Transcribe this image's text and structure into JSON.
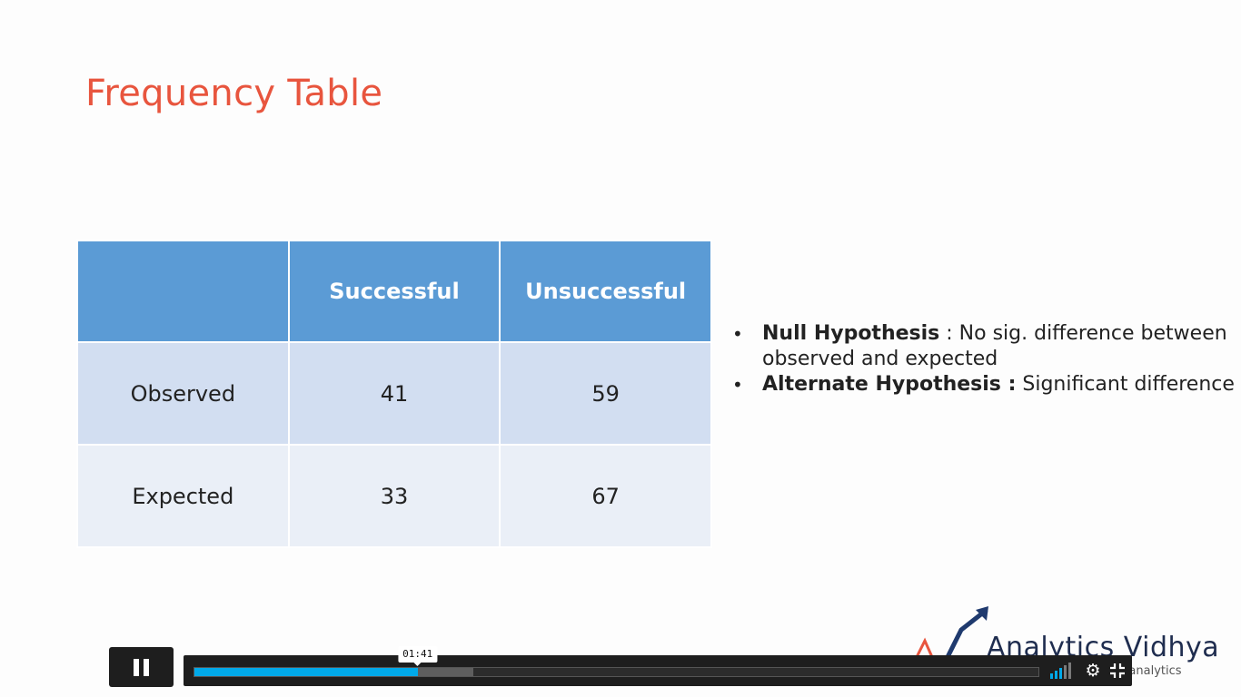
{
  "slide": {
    "title": "Frequency Table",
    "table": {
      "headers": [
        "",
        "Successful",
        "Unsuccessful"
      ],
      "rows": [
        [
          "Observed",
          "41",
          "59"
        ],
        [
          "Expected",
          "33",
          "67"
        ]
      ]
    },
    "bullets": [
      {
        "bold": "Null Hypothesis",
        "sep": " : ",
        "text": "No sig. difference between",
        "text2": "observed and expected"
      },
      {
        "bold": "Alternate Hypothesis :",
        "sep": " ",
        "text": "Significant difference"
      }
    ],
    "logo": {
      "name": "Analytics Vidhya",
      "tagline": "Learn everything about analytics"
    }
  },
  "player": {
    "state": "playing",
    "control_icon": "pause-icon",
    "current_time": "01:41",
    "progress_fraction": 0.265,
    "buffered_fraction": 0.33,
    "volume_level": 3,
    "volume_bars": 5,
    "accent_color": "#00a9e9"
  }
}
